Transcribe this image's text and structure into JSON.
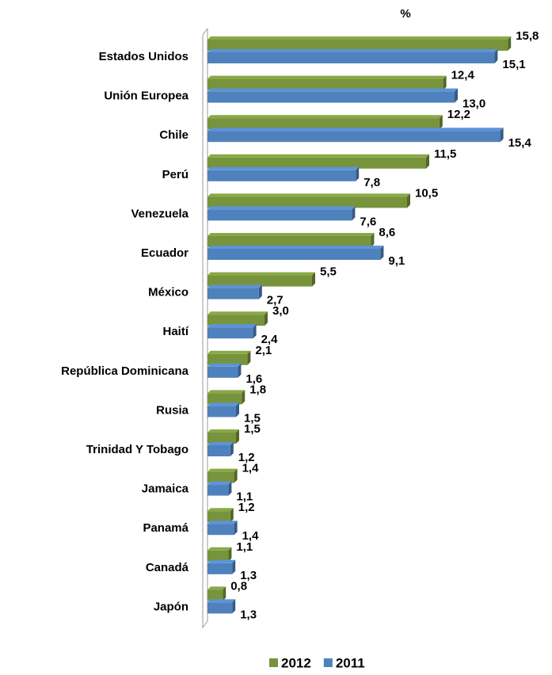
{
  "chart_data": {
    "type": "bar",
    "orientation": "horizontal",
    "title": "%",
    "categories": [
      "Estados Unidos",
      "Unión Europea",
      "Chile",
      "Perú",
      "Venezuela",
      "Ecuador",
      "México",
      "Haití",
      "República Dominicana",
      "Rusia",
      "Trinidad Y Tobago",
      "Jamaica",
      "Panamá",
      "Canadá",
      "Japón"
    ],
    "series": [
      {
        "name": "2012",
        "color": "#77933c",
        "values": [
          15.8,
          12.4,
          12.2,
          11.5,
          10.5,
          8.6,
          5.5,
          3.0,
          2.1,
          1.8,
          1.5,
          1.4,
          1.2,
          1.1,
          0.8
        ],
        "value_labels": [
          "15,8",
          "12,4",
          "12,2",
          "11,5",
          "10,5",
          "8,6",
          "5,5",
          "3,0",
          "2,1",
          "1,8",
          "1,5",
          "1,4",
          "1,2",
          "1,1",
          "0,8"
        ]
      },
      {
        "name": "2011",
        "color": "#4f81bd",
        "values": [
          15.1,
          13.0,
          15.4,
          7.8,
          7.6,
          9.1,
          2.7,
          2.4,
          1.6,
          1.5,
          1.2,
          1.1,
          1.4,
          1.3,
          1.3
        ],
        "value_labels": [
          "15,1",
          "13,0",
          "15,4",
          "7,8",
          "7,6",
          "9,1",
          "2,7",
          "2,4",
          "1,6",
          "1,5",
          "1,2",
          "1,1",
          "1,4",
          "1,3",
          "1,3"
        ]
      }
    ],
    "xlim": [
      0,
      16
    ],
    "legend": "bottom"
  }
}
